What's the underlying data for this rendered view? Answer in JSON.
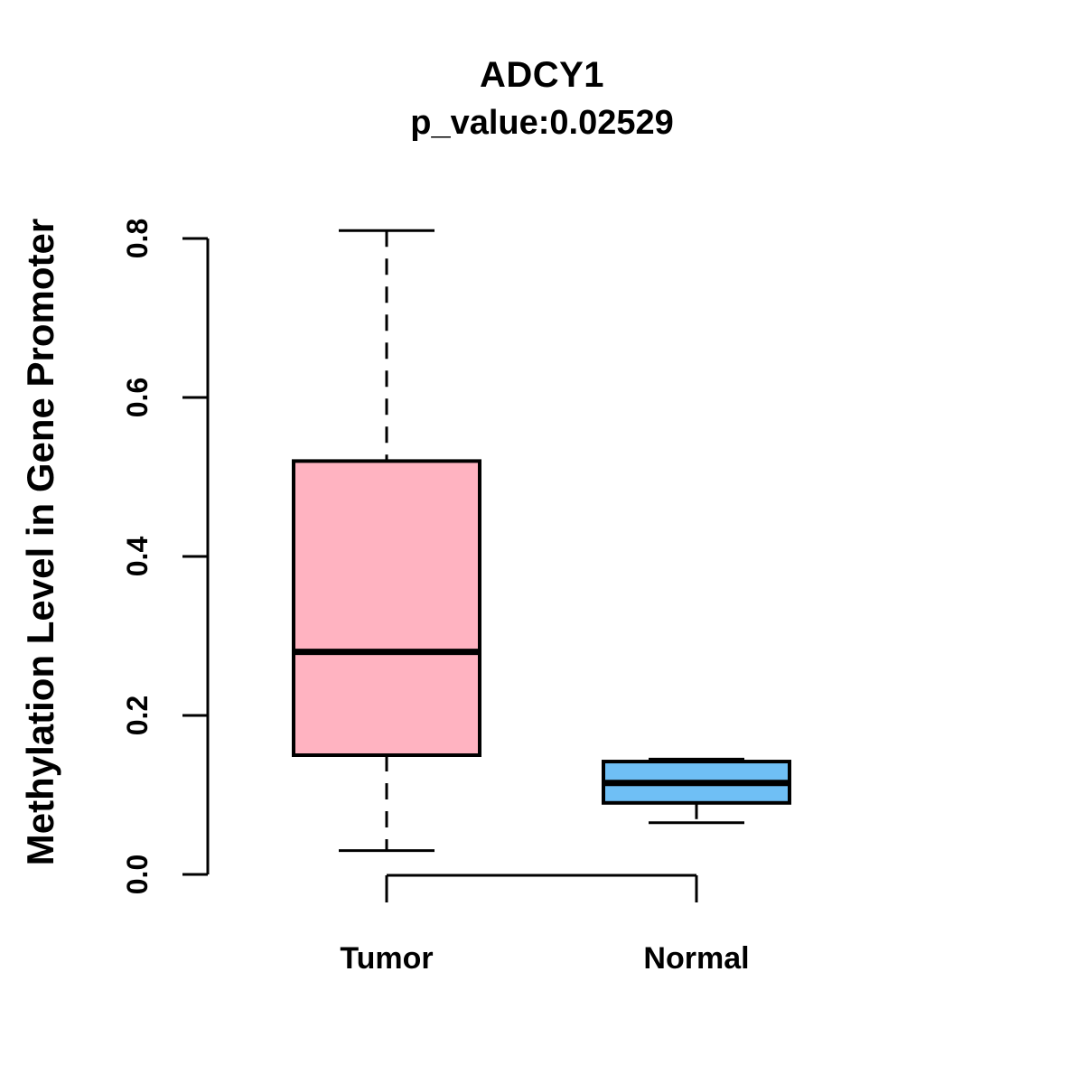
{
  "figure": {
    "background": "#FFFFFF"
  },
  "chart_data": {
    "type": "boxplot",
    "title": "ADCY1",
    "subtitle": "p_value:0.02529",
    "xlabel": "",
    "ylabel": "Methylation Level in Gene Promoter",
    "ylim": [
      0.0,
      0.8
    ],
    "yticks": [
      0.0,
      0.2,
      0.4,
      0.6,
      0.8
    ],
    "ytick_labels": [
      "0.0",
      "0.2",
      "0.4",
      "0.6",
      "0.8"
    ],
    "categories": [
      "Tumor",
      "Normal"
    ],
    "grid": false,
    "legend": false,
    "whisker_style": "dashed",
    "series": [
      {
        "name": "Tumor",
        "fill_color": "#FFB3C1",
        "whisker_low": 0.03,
        "q1": 0.15,
        "median": 0.28,
        "q3": 0.52,
        "whisker_high": 0.81
      },
      {
        "name": "Normal",
        "fill_color": "#6FBFF5",
        "whisker_low": 0.065,
        "q1": 0.09,
        "median": 0.115,
        "q3": 0.142,
        "whisker_high": 0.145
      }
    ],
    "colors": {
      "stroke": "#000000",
      "text": "#000000",
      "tumor_fill": "#FFB3C1",
      "normal_fill": "#6FBFF5"
    }
  }
}
